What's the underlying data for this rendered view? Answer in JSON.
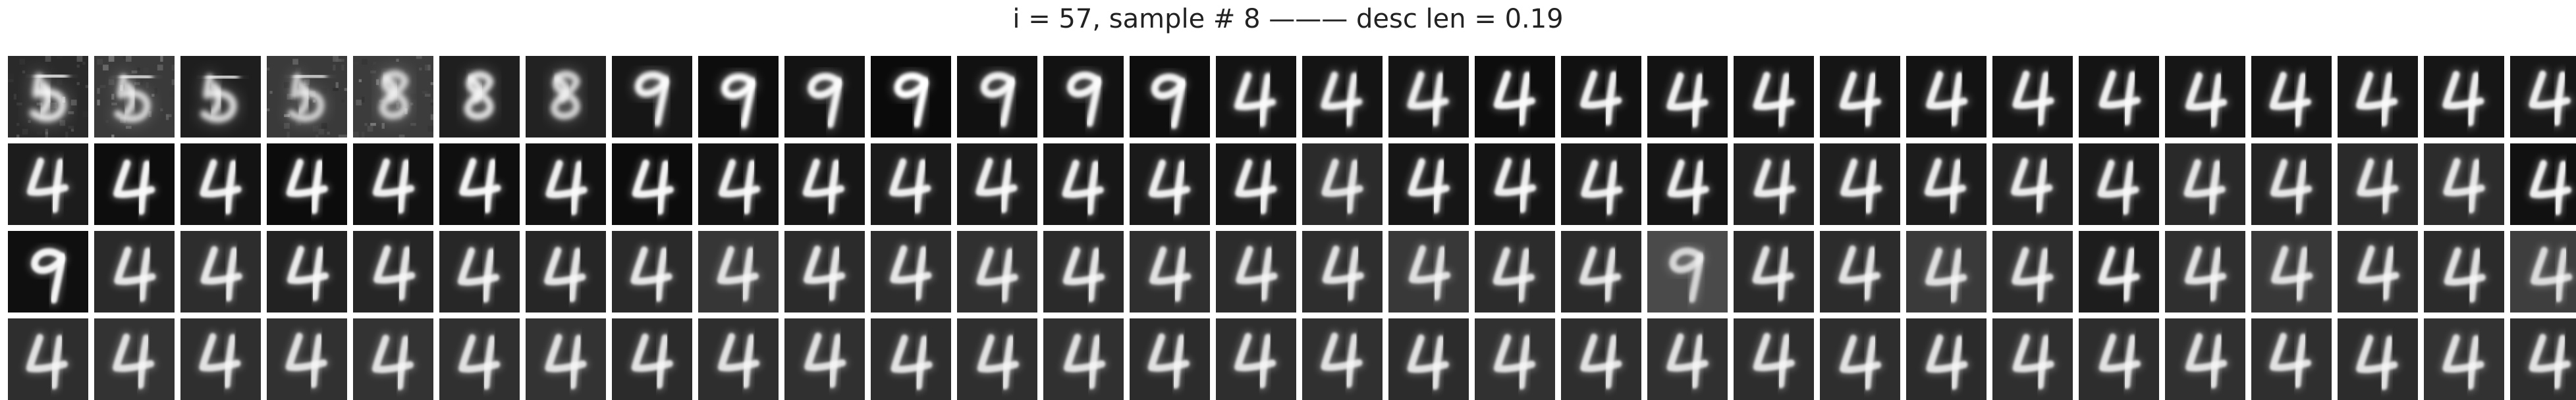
{
  "title": "i = 57, sample # 8 ——— desc len = 0.19",
  "grid": {
    "rows": 4,
    "cols": 30,
    "cells": [
      {
        "digit": "5",
        "bg": "#2a2a2a",
        "stroke": 0.92,
        "blur": 6.0,
        "noise": true
      },
      {
        "digit": "5",
        "bg": "#3a3a3a",
        "stroke": 0.78,
        "blur": 5.0,
        "noise": true
      },
      {
        "digit": "5",
        "bg": "#1e1e1e",
        "stroke": 0.85,
        "blur": 5.5,
        "noise": false
      },
      {
        "digit": "5",
        "bg": "#3a3a3a",
        "stroke": 0.75,
        "blur": 5.0,
        "noise": true
      },
      {
        "digit": "8",
        "bg": "#3c3c3c",
        "stroke": 0.8,
        "blur": 5.5,
        "noise": true
      },
      {
        "digit": "8",
        "bg": "#1f1f1f",
        "stroke": 0.86,
        "blur": 5.0,
        "noise": false
      },
      {
        "digit": "8",
        "bg": "#222222",
        "stroke": 0.8,
        "blur": 5.0,
        "noise": false
      },
      {
        "digit": "9",
        "bg": "#161616",
        "stroke": 0.95,
        "blur": 4.0,
        "noise": false
      },
      {
        "digit": "9",
        "bg": "#0d0d0d",
        "stroke": 1.0,
        "blur": 4.0,
        "noise": false
      },
      {
        "digit": "9",
        "bg": "#131313",
        "stroke": 0.95,
        "blur": 3.5,
        "noise": false
      },
      {
        "digit": "9",
        "bg": "#0a0a0a",
        "stroke": 1.0,
        "blur": 3.5,
        "noise": false
      },
      {
        "digit": "9",
        "bg": "#111111",
        "stroke": 0.95,
        "blur": 3.5,
        "noise": false
      },
      {
        "digit": "9",
        "bg": "#121212",
        "stroke": 0.95,
        "blur": 3.2,
        "noise": false
      },
      {
        "digit": "9",
        "bg": "#0e0e0e",
        "stroke": 0.95,
        "blur": 3.0,
        "noise": false
      },
      {
        "digit": "4",
        "bg": "#131313",
        "stroke": 0.95,
        "blur": 3.0,
        "noise": false
      },
      {
        "digit": "4",
        "bg": "#141414",
        "stroke": 0.93,
        "blur": 3.0,
        "noise": false
      },
      {
        "digit": "4",
        "bg": "#141414",
        "stroke": 0.93,
        "blur": 3.0,
        "noise": false
      },
      {
        "digit": "4",
        "bg": "#0d0d0d",
        "stroke": 0.95,
        "blur": 2.8,
        "noise": false
      },
      {
        "digit": "4",
        "bg": "#111111",
        "stroke": 0.93,
        "blur": 2.8,
        "noise": false
      },
      {
        "digit": "4",
        "bg": "#131313",
        "stroke": 0.93,
        "blur": 2.8,
        "noise": false
      },
      {
        "digit": "4",
        "bg": "#141414",
        "stroke": 0.93,
        "blur": 2.8,
        "noise": false
      },
      {
        "digit": "4",
        "bg": "#151515",
        "stroke": 0.93,
        "blur": 2.8,
        "noise": false
      },
      {
        "digit": "4",
        "bg": "#131313",
        "stroke": 0.93,
        "blur": 2.8,
        "noise": false
      },
      {
        "digit": "4",
        "bg": "#151515",
        "stroke": 0.93,
        "blur": 2.8,
        "noise": false
      },
      {
        "digit": "4",
        "bg": "#141414",
        "stroke": 0.93,
        "blur": 2.8,
        "noise": false
      },
      {
        "digit": "4",
        "bg": "#161616",
        "stroke": 0.92,
        "blur": 2.8,
        "noise": false
      },
      {
        "digit": "4",
        "bg": "#151515",
        "stroke": 0.92,
        "blur": 2.8,
        "noise": false
      },
      {
        "digit": "4",
        "bg": "#171717",
        "stroke": 0.92,
        "blur": 2.8,
        "noise": false
      },
      {
        "digit": "4",
        "bg": "#161616",
        "stroke": 0.92,
        "blur": 2.8,
        "noise": false
      },
      {
        "digit": "4",
        "bg": "#171717",
        "stroke": 0.92,
        "blur": 2.8,
        "noise": false
      },
      {
        "digit": "4",
        "bg": "#1c1c1c",
        "stroke": 0.92,
        "blur": 2.8,
        "noise": false
      },
      {
        "digit": "4",
        "bg": "#0d0d0d",
        "stroke": 0.95,
        "blur": 2.6,
        "noise": false
      },
      {
        "digit": "4",
        "bg": "#131313",
        "stroke": 0.93,
        "blur": 2.6,
        "noise": false
      },
      {
        "digit": "4",
        "bg": "#0c0c0c",
        "stroke": 0.95,
        "blur": 2.6,
        "noise": false
      },
      {
        "digit": "4",
        "bg": "#111111",
        "stroke": 0.93,
        "blur": 2.6,
        "noise": false
      },
      {
        "digit": "4",
        "bg": "#0f0f0f",
        "stroke": 0.95,
        "blur": 2.6,
        "noise": false
      },
      {
        "digit": "4",
        "bg": "#121212",
        "stroke": 0.93,
        "blur": 2.6,
        "noise": false
      },
      {
        "digit": "4",
        "bg": "#0c0c0c",
        "stroke": 0.95,
        "blur": 2.6,
        "noise": false
      },
      {
        "digit": "4",
        "bg": "#131313",
        "stroke": 0.93,
        "blur": 2.6,
        "noise": false
      },
      {
        "digit": "4",
        "bg": "#161616",
        "stroke": 0.93,
        "blur": 2.6,
        "noise": false
      },
      {
        "digit": "4",
        "bg": "#1b1b1b",
        "stroke": 0.92,
        "blur": 2.6,
        "noise": false
      },
      {
        "digit": "4",
        "bg": "#1a1a1a",
        "stroke": 0.92,
        "blur": 2.6,
        "noise": false
      },
      {
        "digit": "4",
        "bg": "#171717",
        "stroke": 0.92,
        "blur": 2.6,
        "noise": false
      },
      {
        "digit": "4",
        "bg": "#1a1a1a",
        "stroke": 0.92,
        "blur": 2.6,
        "noise": false
      },
      {
        "digit": "4",
        "bg": "#151515",
        "stroke": 0.92,
        "blur": 2.6,
        "noise": false
      },
      {
        "digit": "4",
        "bg": "#2b2b2b",
        "stroke": 0.86,
        "blur": 2.8,
        "noise": false
      },
      {
        "digit": "4",
        "bg": "#161616",
        "stroke": 0.92,
        "blur": 2.6,
        "noise": false
      },
      {
        "digit": "4",
        "bg": "#141414",
        "stroke": 0.92,
        "blur": 2.6,
        "noise": false
      },
      {
        "digit": "4",
        "bg": "#1a1a1a",
        "stroke": 0.92,
        "blur": 2.6,
        "noise": false
      },
      {
        "digit": "4",
        "bg": "#151515",
        "stroke": 0.92,
        "blur": 2.6,
        "noise": false
      },
      {
        "digit": "4",
        "bg": "#222222",
        "stroke": 0.9,
        "blur": 2.6,
        "noise": false
      },
      {
        "digit": "4",
        "bg": "#1f1f1f",
        "stroke": 0.9,
        "blur": 2.6,
        "noise": false
      },
      {
        "digit": "4",
        "bg": "#1c1c1c",
        "stroke": 0.9,
        "blur": 2.6,
        "noise": false
      },
      {
        "digit": "4",
        "bg": "#232323",
        "stroke": 0.9,
        "blur": 2.6,
        "noise": false
      },
      {
        "digit": "4",
        "bg": "#1a1a1a",
        "stroke": 0.9,
        "blur": 2.6,
        "noise": false
      },
      {
        "digit": "4",
        "bg": "#292929",
        "stroke": 0.88,
        "blur": 2.6,
        "noise": false
      },
      {
        "digit": "4",
        "bg": "#242424",
        "stroke": 0.88,
        "blur": 2.6,
        "noise": false
      },
      {
        "digit": "4",
        "bg": "#2a2a2a",
        "stroke": 0.88,
        "blur": 2.6,
        "noise": false
      },
      {
        "digit": "4",
        "bg": "#2c2c2c",
        "stroke": 0.88,
        "blur": 2.6,
        "noise": false
      },
      {
        "digit": "4",
        "bg": "#111111",
        "stroke": 0.93,
        "blur": 2.6,
        "noise": false
      },
      {
        "digit": "9",
        "bg": "#0f0f0f",
        "stroke": 0.95,
        "blur": 2.6,
        "noise": false
      },
      {
        "digit": "4",
        "bg": "#2a2a2a",
        "stroke": 0.88,
        "blur": 2.6,
        "noise": false
      },
      {
        "digit": "4",
        "bg": "#2d2d2d",
        "stroke": 0.88,
        "blur": 2.6,
        "noise": false
      },
      {
        "digit": "4",
        "bg": "#222222",
        "stroke": 0.9,
        "blur": 2.6,
        "noise": false
      },
      {
        "digit": "4",
        "bg": "#262626",
        "stroke": 0.88,
        "blur": 2.6,
        "noise": false
      },
      {
        "digit": "4",
        "bg": "#272727",
        "stroke": 0.88,
        "blur": 2.6,
        "noise": false
      },
      {
        "digit": "4",
        "bg": "#262626",
        "stroke": 0.88,
        "blur": 2.6,
        "noise": false
      },
      {
        "digit": "4",
        "bg": "#2a2a2a",
        "stroke": 0.88,
        "blur": 2.6,
        "noise": false
      },
      {
        "digit": "4",
        "bg": "#363636",
        "stroke": 0.85,
        "blur": 2.8,
        "noise": false
      },
      {
        "digit": "4",
        "bg": "#2b2b2b",
        "stroke": 0.88,
        "blur": 2.6,
        "noise": false
      },
      {
        "digit": "4",
        "bg": "#2d2d2d",
        "stroke": 0.88,
        "blur": 2.6,
        "noise": false
      },
      {
        "digit": "4",
        "bg": "#303030",
        "stroke": 0.86,
        "blur": 2.6,
        "noise": false
      },
      {
        "digit": "4",
        "bg": "#2a2a2a",
        "stroke": 0.88,
        "blur": 2.6,
        "noise": false
      },
      {
        "digit": "4",
        "bg": "#2f2f2f",
        "stroke": 0.86,
        "blur": 2.6,
        "noise": false
      },
      {
        "digit": "4",
        "bg": "#2c2c2c",
        "stroke": 0.86,
        "blur": 2.6,
        "noise": false
      },
      {
        "digit": "4",
        "bg": "#2e2e2e",
        "stroke": 0.86,
        "blur": 2.6,
        "noise": false
      },
      {
        "digit": "4",
        "bg": "#383838",
        "stroke": 0.84,
        "blur": 2.8,
        "noise": false
      },
      {
        "digit": "4",
        "bg": "#2c2c2c",
        "stroke": 0.86,
        "blur": 2.6,
        "noise": false
      },
      {
        "digit": "4",
        "bg": "#2a2a2a",
        "stroke": 0.86,
        "blur": 2.6,
        "noise": false
      },
      {
        "digit": "9",
        "bg": "#4a4a4a",
        "stroke": 0.78,
        "blur": 3.2,
        "noise": false
      },
      {
        "digit": "4",
        "bg": "#2a2a2a",
        "stroke": 0.86,
        "blur": 2.6,
        "noise": false
      },
      {
        "digit": "4",
        "bg": "#2c2c2c",
        "stroke": 0.86,
        "blur": 2.6,
        "noise": false
      },
      {
        "digit": "4",
        "bg": "#3a3a3a",
        "stroke": 0.84,
        "blur": 2.6,
        "noise": false
      },
      {
        "digit": "4",
        "bg": "#2d2d2d",
        "stroke": 0.86,
        "blur": 2.6,
        "noise": false
      },
      {
        "digit": "4",
        "bg": "#1d1d1d",
        "stroke": 0.9,
        "blur": 2.6,
        "noise": false
      },
      {
        "digit": "4",
        "bg": "#2f2f2f",
        "stroke": 0.86,
        "blur": 2.6,
        "noise": false
      },
      {
        "digit": "4",
        "bg": "#383838",
        "stroke": 0.84,
        "blur": 2.6,
        "noise": false
      },
      {
        "digit": "4",
        "bg": "#2e2e2e",
        "stroke": 0.86,
        "blur": 2.6,
        "noise": false
      },
      {
        "digit": "4",
        "bg": "#2b2b2b",
        "stroke": 0.86,
        "blur": 2.6,
        "noise": false
      },
      {
        "digit": "4",
        "bg": "#3e3e3e",
        "stroke": 0.82,
        "blur": 2.6,
        "noise": false
      },
      {
        "digit": "4",
        "bg": "#2e2e2e",
        "stroke": 0.86,
        "blur": 2.6,
        "noise": false
      },
      {
        "digit": "4",
        "bg": "#333333",
        "stroke": 0.85,
        "blur": 2.6,
        "noise": false
      },
      {
        "digit": "4",
        "bg": "#2f2f2f",
        "stroke": 0.86,
        "blur": 2.6,
        "noise": false
      },
      {
        "digit": "4",
        "bg": "#313131",
        "stroke": 0.85,
        "blur": 2.6,
        "noise": false
      },
      {
        "digit": "4",
        "bg": "#333333",
        "stroke": 0.85,
        "blur": 2.6,
        "noise": false
      },
      {
        "digit": "4",
        "bg": "#303030",
        "stroke": 0.85,
        "blur": 2.6,
        "noise": false
      },
      {
        "digit": "4",
        "bg": "#333333",
        "stroke": 0.85,
        "blur": 2.6,
        "noise": false
      },
      {
        "digit": "4",
        "bg": "#2b2b2b",
        "stroke": 0.86,
        "blur": 2.6,
        "noise": false
      },
      {
        "digit": "4",
        "bg": "#2e2e2e",
        "stroke": 0.86,
        "blur": 2.6,
        "noise": false
      },
      {
        "digit": "4",
        "bg": "#303030",
        "stroke": 0.85,
        "blur": 2.6,
        "noise": false
      },
      {
        "digit": "4",
        "bg": "#2d2d2d",
        "stroke": 0.86,
        "blur": 2.6,
        "noise": false
      },
      {
        "digit": "4",
        "bg": "#2f2f2f",
        "stroke": 0.86,
        "blur": 2.6,
        "noise": false
      },
      {
        "digit": "4",
        "bg": "#303030",
        "stroke": 0.85,
        "blur": 2.6,
        "noise": false
      },
      {
        "digit": "4",
        "bg": "#2c2c2c",
        "stroke": 0.86,
        "blur": 2.6,
        "noise": false
      },
      {
        "digit": "4",
        "bg": "#2e2e2e",
        "stroke": 0.86,
        "blur": 2.6,
        "noise": false
      },
      {
        "digit": "4",
        "bg": "#303030",
        "stroke": 0.85,
        "blur": 2.6,
        "noise": false
      },
      {
        "digit": "4",
        "bg": "#2c2c2c",
        "stroke": 0.86,
        "blur": 2.6,
        "noise": false
      },
      {
        "digit": "4",
        "bg": "#313131",
        "stroke": 0.85,
        "blur": 2.6,
        "noise": false
      },
      {
        "digit": "4",
        "bg": "#2e2e2e",
        "stroke": 0.86,
        "blur": 2.6,
        "noise": false
      },
      {
        "digit": "4",
        "bg": "#303030",
        "stroke": 0.85,
        "blur": 2.6,
        "noise": false
      },
      {
        "digit": "4",
        "bg": "#2d2d2d",
        "stroke": 0.86,
        "blur": 2.6,
        "noise": false
      },
      {
        "digit": "4",
        "bg": "#2e2e2e",
        "stroke": 0.86,
        "blur": 2.6,
        "noise": false
      },
      {
        "digit": "4",
        "bg": "#2b2b2b",
        "stroke": 0.86,
        "blur": 2.6,
        "noise": false
      },
      {
        "digit": "4",
        "bg": "#2f2f2f",
        "stroke": 0.86,
        "blur": 2.6,
        "noise": false
      },
      {
        "digit": "4",
        "bg": "#2d2d2d",
        "stroke": 0.86,
        "blur": 2.6,
        "noise": false
      },
      {
        "digit": "4",
        "bg": "#303030",
        "stroke": 0.85,
        "blur": 2.6,
        "noise": false
      },
      {
        "digit": "4",
        "bg": "#2f2f2f",
        "stroke": 0.86,
        "blur": 2.6,
        "noise": false
      },
      {
        "digit": "4",
        "bg": "#2c2c2c",
        "stroke": 0.86,
        "blur": 2.6,
        "noise": false
      },
      {
        "digit": "4",
        "bg": "#323232",
        "stroke": 0.85,
        "blur": 2.6,
        "noise": false
      },
      {
        "digit": "4",
        "bg": "#2e2e2e",
        "stroke": 0.86,
        "blur": 2.6,
        "noise": false
      }
    ]
  }
}
